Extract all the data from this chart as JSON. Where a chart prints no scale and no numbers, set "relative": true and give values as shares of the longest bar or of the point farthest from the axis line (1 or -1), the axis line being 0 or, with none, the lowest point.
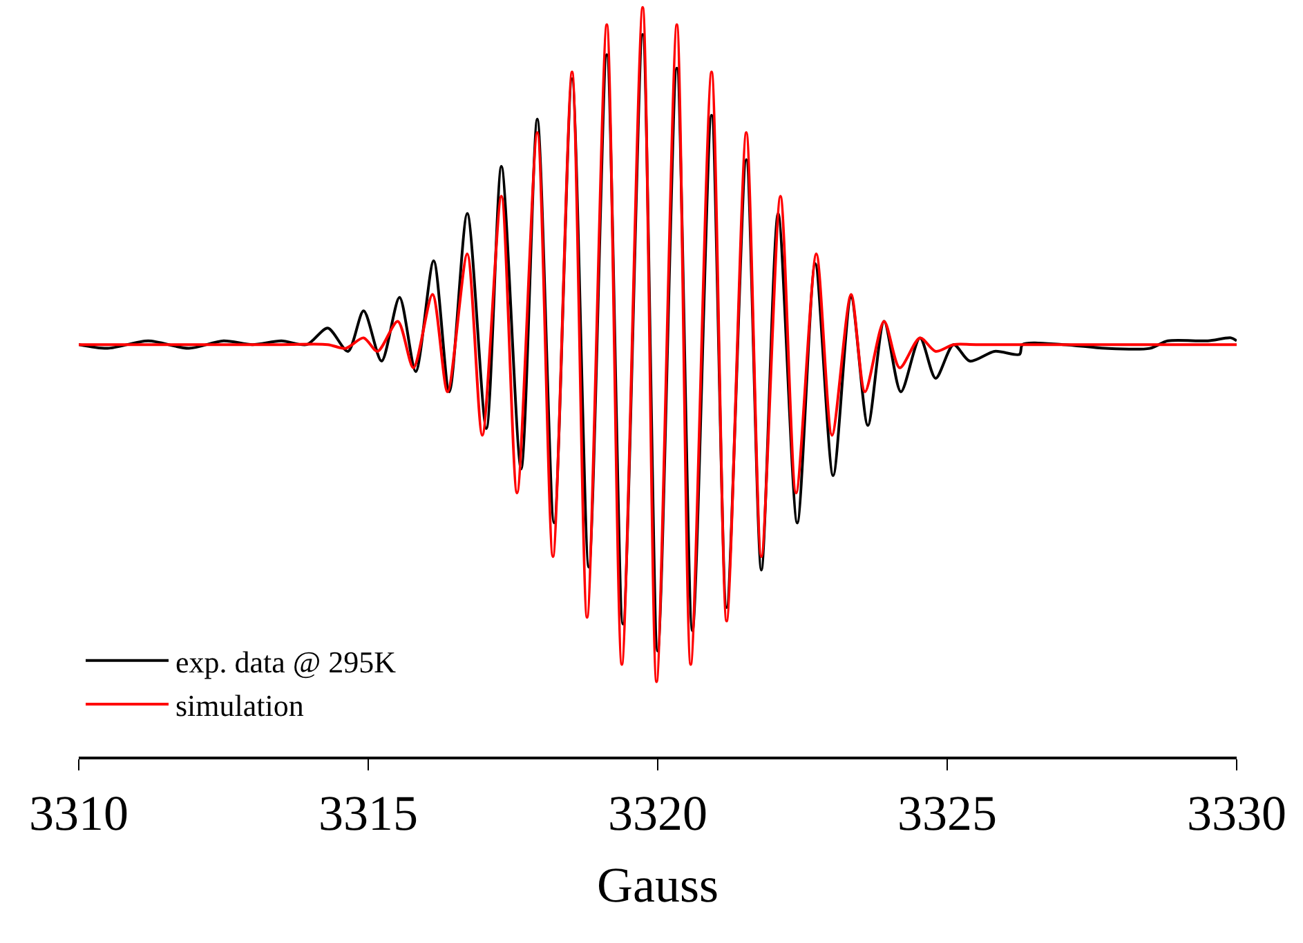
{
  "chart_data": {
    "type": "line",
    "xlabel": "Gauss",
    "relative": true,
    "xlim": [
      3310,
      3330
    ],
    "xticks": [
      3310,
      3315,
      3320,
      3325,
      3330
    ],
    "legend": "bottom left",
    "marker": "none",
    "line_style": "solid",
    "series": [
      {
        "name": "exp. data @ 295K",
        "color": "#000000",
        "x": [
          3310,
          3310.5,
          3311.2,
          3311.9,
          3312.5,
          3313.0,
          3313.5,
          3313.94,
          3314.3,
          3314.65,
          3314.92,
          3315.23,
          3315.54,
          3315.82,
          3316.13,
          3316.4,
          3316.71,
          3317.04,
          3317.3,
          3317.64,
          3317.92,
          3318.21,
          3318.52,
          3318.81,
          3319.12,
          3319.4,
          3319.74,
          3320.0,
          3320.33,
          3320.6,
          3320.93,
          3321.19,
          3321.53,
          3321.79,
          3322.08,
          3322.41,
          3322.72,
          3323.03,
          3323.34,
          3323.63,
          3323.91,
          3324.2,
          3324.53,
          3324.8,
          3325.11,
          3325.39,
          3325.82,
          3326.25,
          3326.3,
          3327.0,
          3327.73,
          3328.5,
          3328.81,
          3329.5,
          3329.9,
          3330
        ],
        "values": [
          0.55,
          0.545,
          0.555,
          0.545,
          0.555,
          0.55,
          0.555,
          0.55,
          0.572,
          0.541,
          0.595,
          0.528,
          0.613,
          0.514,
          0.662,
          0.487,
          0.725,
          0.438,
          0.788,
          0.384,
          0.851,
          0.312,
          0.905,
          0.253,
          0.937,
          0.177,
          0.964,
          0.141,
          0.919,
          0.168,
          0.856,
          0.199,
          0.797,
          0.249,
          0.725,
          0.312,
          0.658,
          0.375,
          0.613,
          0.442,
          0.581,
          0.487,
          0.559,
          0.505,
          0.55,
          0.528,
          0.541,
          0.537,
          0.55,
          0.55,
          0.545,
          0.545,
          0.555,
          0.555,
          0.559,
          0.555
        ]
      },
      {
        "name": "simulation",
        "color": "#ff0000",
        "x": [
          3310,
          3313.5,
          3314.3,
          3314.61,
          3314.92,
          3315.16,
          3315.51,
          3315.78,
          3316.11,
          3316.37,
          3316.71,
          3316.97,
          3317.3,
          3317.57,
          3317.92,
          3318.19,
          3318.52,
          3318.78,
          3319.12,
          3319.38,
          3319.74,
          3319.98,
          3320.33,
          3320.57,
          3320.93,
          3321.19,
          3321.53,
          3321.79,
          3322.12,
          3322.39,
          3322.74,
          3323.01,
          3323.34,
          3323.58,
          3323.91,
          3324.18,
          3324.53,
          3324.8,
          3325.11,
          3325.5,
          3330
        ],
        "values": [
          0.55,
          0.55,
          0.55,
          0.545,
          0.559,
          0.541,
          0.581,
          0.519,
          0.617,
          0.487,
          0.671,
          0.429,
          0.748,
          0.352,
          0.833,
          0.267,
          0.914,
          0.186,
          0.977,
          0.123,
          1.0,
          0.1,
          0.977,
          0.123,
          0.914,
          0.181,
          0.833,
          0.267,
          0.748,
          0.352,
          0.671,
          0.429,
          0.617,
          0.487,
          0.581,
          0.519,
          0.559,
          0.541,
          0.55,
          0.55,
          0.55
        ]
      }
    ]
  }
}
